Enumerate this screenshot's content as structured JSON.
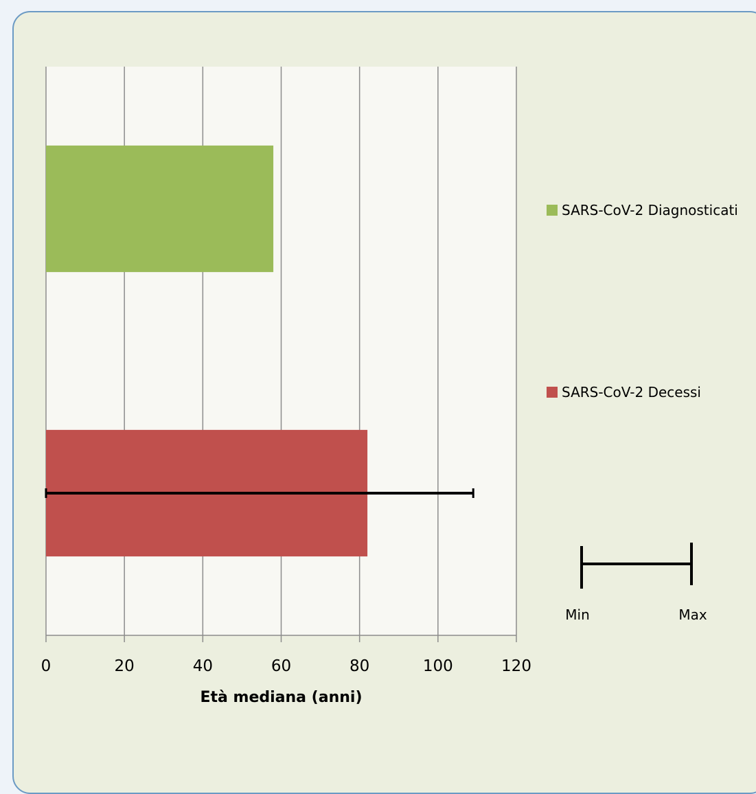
{
  "chart_data": {
    "type": "bar",
    "orientation": "horizontal",
    "categories": [
      "SARS-CoV-2 Decessi",
      "SARS-CoV-2 Diagnosticati"
    ],
    "series": [
      {
        "name": "SARS-CoV-2 Diagnosticati",
        "color": "#9bbb59",
        "value": 58
      },
      {
        "name": "SARS-CoV-2 Decessi",
        "color": "#c0504d",
        "value": 82,
        "error_min": 0,
        "error_max": 109
      }
    ],
    "xlabel": "Età mediana (anni)",
    "xlim": [
      0,
      120
    ],
    "xticks": [
      "0",
      "20",
      "40",
      "60",
      "80",
      "100",
      "120"
    ],
    "grid": true,
    "legend_position": "right",
    "error_legend": {
      "min_label": "Min",
      "max_label": "Max"
    }
  }
}
